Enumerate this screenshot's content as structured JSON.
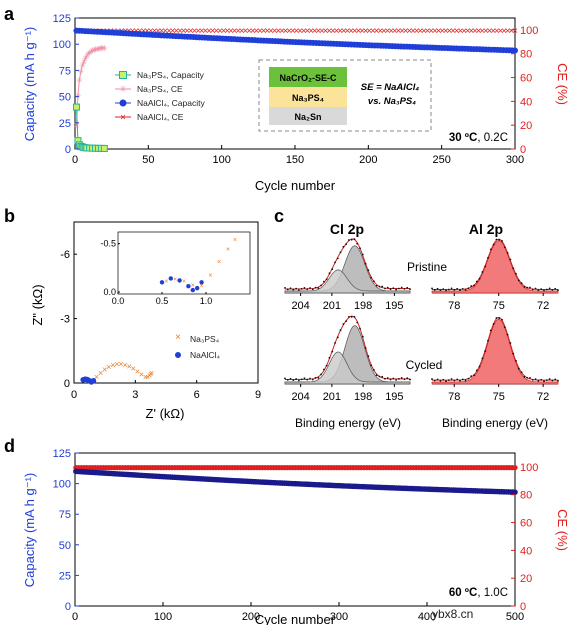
{
  "chart_data": [
    {
      "panel": "a",
      "type": "scatter",
      "xlabel": "Cycle number",
      "ylabel_left": "Capacity (mA h g⁻¹)",
      "ylabel_right": "CE (%)",
      "xlim": [
        0,
        300
      ],
      "ylim_left": [
        0,
        125
      ],
      "ylim_right": [
        0,
        110
      ],
      "xticks": [
        "0",
        "50",
        "100",
        "150",
        "200",
        "250",
        "300"
      ],
      "yticks_left": [
        "0",
        "25",
        "50",
        "75",
        "100",
        "125"
      ],
      "yticks_right": [
        "0",
        "20",
        "40",
        "60",
        "80",
        "100"
      ],
      "condition": {
        "temp": "30 ºC",
        "rate": ", 0.2C"
      },
      "legend": [
        "Na₃PS₄, Capacity",
        "Na₃PS₄, CE",
        "NaAlCl₄, Capacity",
        "NaAlCl₄, CE"
      ],
      "inset": {
        "layers": [
          "NaCrO₂-SE-C",
          "Na₃PS₄",
          "Na₂Sn"
        ],
        "note_line1": "SE = NaAlCl₄",
        "note_line2": "vs. Na₃PS₄"
      },
      "series": [
        {
          "name": "Na₃PS₄, Capacity",
          "axis": "left",
          "x": [
            1,
            2,
            3,
            4,
            5,
            6,
            7,
            8,
            10,
            12,
            14,
            16,
            18,
            20
          ],
          "y": [
            40,
            8,
            4,
            2.5,
            2,
            1.5,
            1.2,
            1,
            0.9,
            0.8,
            0.7,
            0.6,
            0.6,
            0.5
          ]
        },
        {
          "name": "Na₃PS₄, CE",
          "axis": "right",
          "x": [
            1,
            2,
            3,
            4,
            5,
            6,
            7,
            8,
            9,
            10,
            11,
            12,
            13,
            14,
            15,
            16,
            17,
            18,
            19,
            20
          ],
          "y": [
            20,
            45,
            58,
            65,
            70,
            73,
            76,
            78,
            80,
            81,
            82,
            83,
            83,
            84,
            84,
            84,
            85,
            85,
            85,
            85
          ]
        },
        {
          "name": "NaAlCl₄, Capacity",
          "axis": "left",
          "x_start": 1,
          "x_end": 300,
          "y_start": 113,
          "y_end": 94
        },
        {
          "name": "NaAlCl₄, CE",
          "axis": "right",
          "x_start": 2,
          "x_end": 300,
          "y_start": 99.5,
          "y_end": 99.5
        }
      ]
    },
    {
      "panel": "b",
      "type": "scatter",
      "xlabel": "Z' (kΩ)",
      "ylabel": "Z\" (kΩ)",
      "xlim": [
        0,
        9
      ],
      "ylim": [
        0,
        -7.5
      ],
      "xticks": [
        "0",
        "3",
        "6",
        "9"
      ],
      "yticks": [
        "0",
        "-3",
        "-6"
      ],
      "legend": [
        "Na₃PS₄",
        "NaAlCl₄"
      ],
      "series": [
        {
          "name": "Na₃PS₄",
          "x": [
            0.9,
            1.1,
            1.3,
            1.5,
            1.7,
            1.9,
            2.1,
            2.3,
            2.5,
            2.7,
            2.9,
            3.1,
            3.3,
            3.5,
            3.6,
            3.7,
            3.75,
            3.8
          ],
          "y": [
            -0.1,
            -0.3,
            -0.5,
            -0.65,
            -0.78,
            -0.86,
            -0.9,
            -0.9,
            -0.87,
            -0.8,
            -0.7,
            -0.57,
            -0.42,
            -0.3,
            -0.3,
            -0.38,
            -0.45,
            -0.5
          ]
        },
        {
          "name": "NaAlCl₄",
          "x": [
            0.45,
            0.55,
            0.65,
            0.75,
            0.85,
            0.95
          ],
          "y": [
            -0.15,
            -0.18,
            -0.16,
            -0.1,
            -0.05,
            -0.1
          ]
        }
      ],
      "inset": {
        "xlim": [
          0,
          1.5
        ],
        "ylim": [
          0,
          -0.6
        ],
        "xticks": [
          "0.0",
          "0.5",
          "1.0"
        ],
        "yticks": [
          "0.0",
          "-0.5"
        ],
        "series": [
          {
            "name": "Na₃PS₄",
            "x": [
              0.55,
              0.65,
              0.75,
              0.85,
              0.95,
              1.05,
              1.15,
              1.25,
              1.33
            ],
            "y": [
              -0.12,
              -0.14,
              -0.12,
              -0.08,
              -0.07,
              -0.18,
              -0.32,
              -0.45,
              -0.55
            ]
          },
          {
            "name": "NaAlCl₄",
            "x": [
              0.5,
              0.6,
              0.7,
              0.8,
              0.85,
              0.9,
              0.95
            ],
            "y": [
              -0.1,
              -0.14,
              -0.12,
              -0.06,
              -0.02,
              -0.04,
              -0.1
            ]
          }
        ]
      }
    },
    {
      "panel": "c",
      "type": "area",
      "xlabel_left": "Binding energy (eV)",
      "xlabel_right": "Binding energy (eV)",
      "titles": [
        "Cl 2p",
        "Al 2p"
      ],
      "row_labels": [
        "Pristine",
        "Cycled"
      ],
      "xticks_cl": [
        "204",
        "201",
        "198",
        "195"
      ],
      "xticks_al": [
        "78",
        "75",
        "72"
      ],
      "cl2p_peaks_ev": [
        200.4,
        198.8
      ],
      "al2p_peak_ev": 75.0
    },
    {
      "panel": "d",
      "type": "scatter",
      "xlabel": "Cycle number",
      "ylabel_left": "Capacity (mA h g⁻¹)",
      "ylabel_right": "CE (%)",
      "xlim": [
        0,
        500
      ],
      "ylim_left": [
        0,
        125
      ],
      "ylim_right": [
        0,
        110
      ],
      "xticks": [
        "0",
        "100",
        "200",
        "300",
        "400",
        "500"
      ],
      "yticks_left": [
        "0",
        "25",
        "50",
        "75",
        "100",
        "125"
      ],
      "yticks_right": [
        "0",
        "20",
        "40",
        "60",
        "80",
        "100"
      ],
      "condition": {
        "temp": "60 ºC",
        "rate": ", 1.0C"
      },
      "series": [
        {
          "name": "Capacity",
          "axis": "left",
          "x_start": 1,
          "x_end": 500,
          "y_start": 110,
          "y_end": 93
        },
        {
          "name": "CE",
          "axis": "right",
          "x_start": 1,
          "x_end": 500,
          "y_start": 99.5,
          "y_end": 99.5
        }
      ]
    }
  ],
  "panel_labels": [
    "a",
    "b",
    "c",
    "d"
  ],
  "watermark": "ybx8.cn",
  "colors": {
    "capacity": "#1f3fd8",
    "capacity_dark": "#1a1a8c",
    "ce": "#e02020",
    "na3ps4_cap": "#22b5a5",
    "na3ps4_ce": "#f08ba0",
    "eis_orange": "#e87d2b"
  }
}
